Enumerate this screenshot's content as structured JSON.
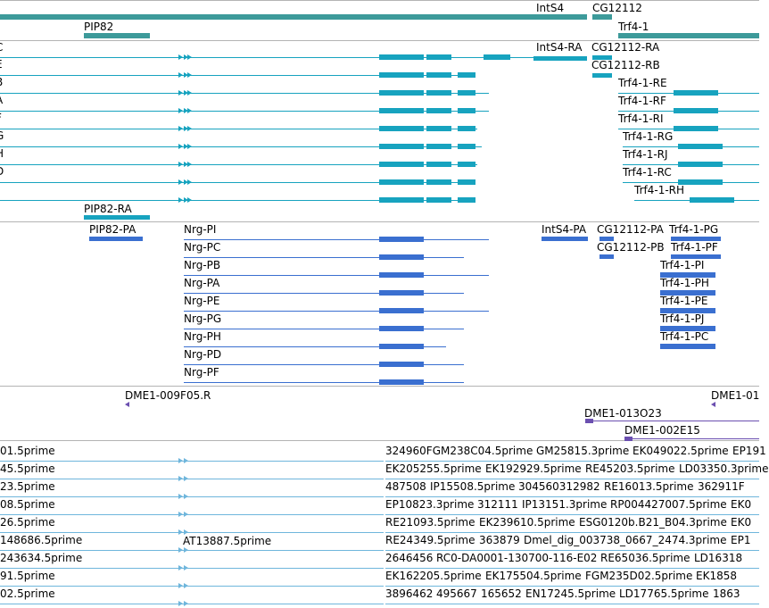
{
  "colors": {
    "gene": "#3d9a9a",
    "mrna": "#17a3bf",
    "cds": "#3a6fd0",
    "est_purple": "#6b4fb0",
    "est_light": "#6fb6dc",
    "separator": "#b4b4b4"
  },
  "gene_labels": {
    "intS4": "IntS4",
    "cg12112": "CG12112",
    "pip82": "PIP82",
    "trf4_1": "Trf4-1"
  },
  "transcript_labels": {
    "ints4_ra": "IntS4-RA",
    "cg12112_ra": "CG12112-RA",
    "cg12112_rb": "CG12112-RB",
    "pip82_ra": "PIP82-RA",
    "trf4": [
      "Trf4-1-RE",
      "Trf4-1-RF",
      "Trf4-1-RI",
      "Trf4-1-RG",
      "Trf4-1-RJ",
      "Trf4-1-RC",
      "Trf4-1-RH"
    ],
    "cut_left": [
      "E",
      "B",
      "A",
      "F",
      "G",
      "H",
      "D"
    ],
    "cut_top": "C"
  },
  "protein_labels": {
    "pip82_pa": "PIP82-PA",
    "nrg": [
      "Nrg-PI",
      "Nrg-PC",
      "Nrg-PB",
      "Nrg-PA",
      "Nrg-PE",
      "Nrg-PG",
      "Nrg-PH",
      "Nrg-PD",
      "Nrg-PF"
    ],
    "ints4_pa": "IntS4-PA",
    "cg12112_pa": "CG12112-PA",
    "cg12112_pb": "CG12112-PB",
    "trf4_pg": "Trf4-1-PG",
    "trf4_pf": "Trf4-1-PF",
    "trf4_p": [
      "Trf4-1-PI",
      "Trf4-1-PH",
      "Trf4-1-PE",
      "Trf4-1-PJ",
      "Trf4-1-PC"
    ]
  },
  "clone_labels": {
    "dme_009f05": "DME1-009F05.R",
    "dme_01_cut": "DME1-01",
    "dme_013023": "DME1-013O23",
    "dme_002e15": "DME1-002E15"
  },
  "est_left_labels": [
    "01.5prime",
    "45.5prime",
    "23.5prime",
    "08.5prime",
    "26.5prime",
    "148686.5prime",
    "243634.5prime",
    "91.5prime",
    "02.5prime"
  ],
  "est_at13887": "AT13887.5prime",
  "est_rows": [
    [
      "324960FGM238C04.5prime",
      "GM25815.3prime",
      "EK049022.5prime",
      "EP191"
    ],
    [
      "EK205255.5prime",
      "EK192929.5prime",
      "RE45203.5prime",
      "LD03350.3prime"
    ],
    [
      "487508",
      "IP15508.5prime",
      "304560312982",
      "RE16013.5prime",
      "362911F"
    ],
    [
      "EP10823.3prime",
      "312111",
      "IP13151.3prime",
      "RP004427007.5prime",
      "EK0"
    ],
    [
      "RE21093.5prime",
      "EK239610.5prime",
      "ESG0120b.B21_B04.3prime",
      "EK0"
    ],
    [
      "RE24349.5prime",
      "363879",
      "Dmel_dig_003738_0667_2474.3prime",
      "EP1"
    ],
    [
      "2646456",
      "RC0-DA0001-130700-116-E02",
      "RE65036.5prime",
      "LD16318"
    ],
    [
      "EK162205.5prime",
      "EK175504.5prime",
      "FGM235D02.5prime",
      "EK1858"
    ],
    [
      "3896462",
      "495667",
      "165652",
      "EN17245.5prime",
      "LD17765.5prime",
      "1863"
    ]
  ]
}
